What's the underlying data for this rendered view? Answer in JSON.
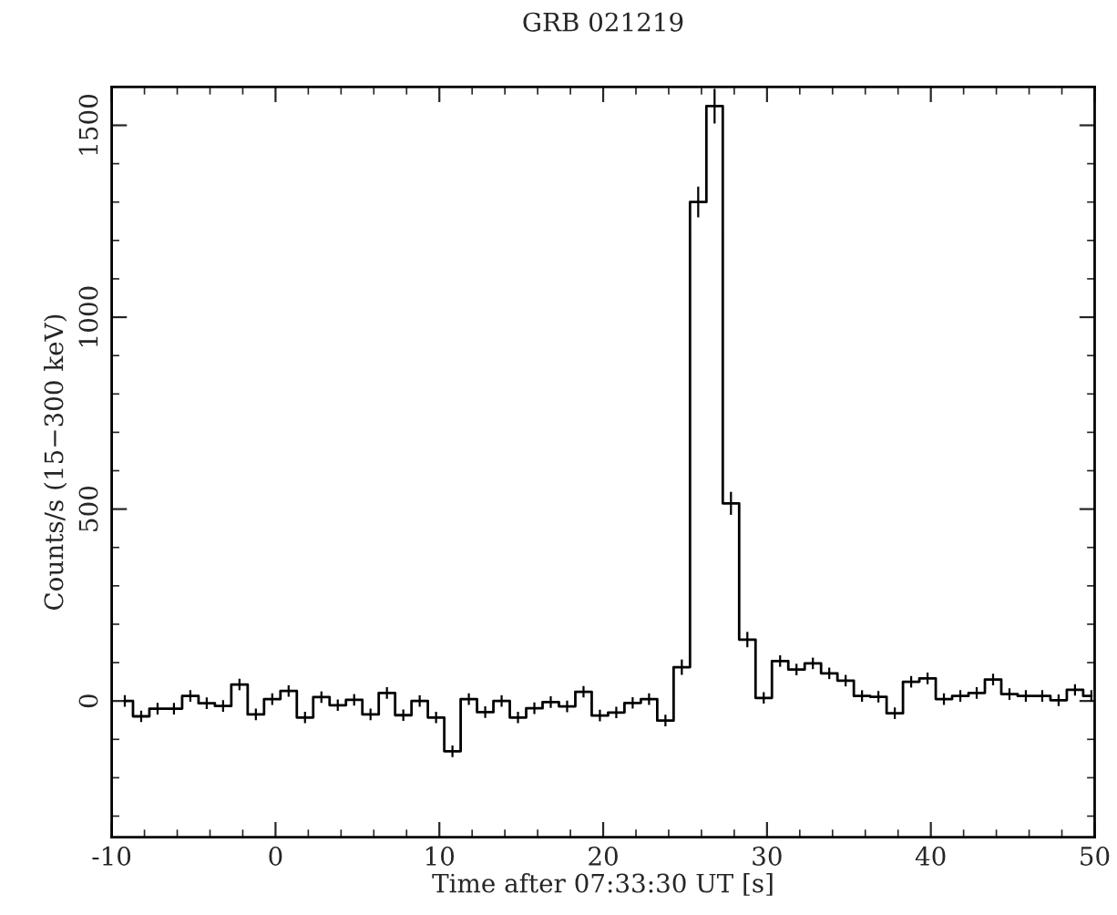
{
  "chart_data": {
    "type": "step",
    "title": "GRB 021219",
    "xlabel": "Time after 07:33:30 UT [s]",
    "ylabel": "Counts/s (15−300 keV)",
    "x": [
      -9.2,
      -8.2,
      -7.2,
      -6.2,
      -5.2,
      -4.2,
      -3.2,
      -2.2,
      -1.2,
      -0.2,
      0.8,
      1.8,
      2.8,
      3.8,
      4.8,
      5.8,
      6.8,
      7.8,
      8.8,
      9.8,
      10.8,
      11.8,
      12.8,
      13.8,
      14.8,
      15.8,
      16.8,
      17.8,
      18.8,
      19.8,
      20.8,
      21.8,
      22.8,
      23.8,
      24.8,
      25.8,
      26.8,
      27.8,
      28.8,
      29.8,
      30.8,
      31.8,
      32.8,
      33.8,
      34.8,
      35.8,
      36.8,
      37.8,
      38.8,
      39.8,
      40.8,
      41.8,
      42.8,
      43.8,
      44.8,
      45.8,
      46.8,
      47.8,
      48.8,
      49.8
    ],
    "values": [
      0,
      -40,
      -20,
      -20,
      13,
      -6,
      -13,
      43,
      -35,
      5,
      26,
      -43,
      10,
      -11,
      3,
      -35,
      21,
      -37,
      0,
      -43,
      -131,
      5,
      -29,
      0,
      -43,
      -19,
      -3,
      -14,
      24,
      -38,
      -30,
      -5,
      5,
      -51,
      88,
      1300,
      1550,
      515,
      160,
      8,
      104,
      82,
      98,
      72,
      53,
      13,
      11,
      -32,
      50,
      59,
      5,
      13,
      21,
      56,
      18,
      13,
      13,
      2,
      29,
      13
    ],
    "errors": [
      15,
      15,
      15,
      15,
      15,
      15,
      15,
      15,
      15,
      15,
      15,
      15,
      15,
      15,
      15,
      15,
      15,
      15,
      15,
      15,
      15,
      15,
      15,
      15,
      15,
      15,
      15,
      15,
      15,
      15,
      15,
      15,
      15,
      15,
      20,
      40,
      45,
      30,
      20,
      15,
      15,
      15,
      15,
      15,
      15,
      15,
      15,
      15,
      15,
      15,
      15,
      15,
      15,
      15,
      15,
      15,
      15,
      15,
      15,
      15
    ],
    "color": "#000000",
    "xlim": [
      -10,
      50
    ],
    "ylim": [
      -355,
      1600
    ],
    "xticks": [
      -10,
      0,
      10,
      20,
      30,
      40,
      50
    ],
    "yticks": [
      0,
      500,
      1000,
      1500
    ]
  }
}
